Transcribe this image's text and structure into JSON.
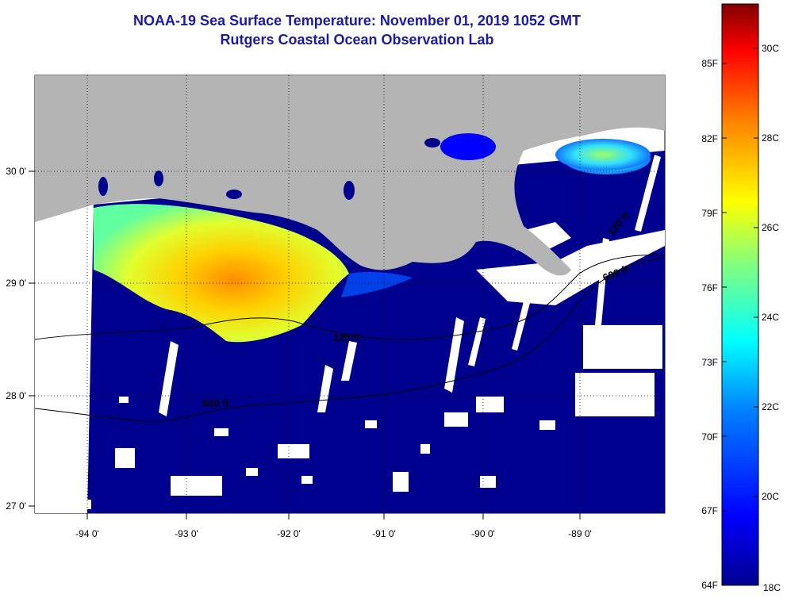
{
  "header": {
    "title": "NOAA-19 Sea Surface Temperature:  November 01, 2019 1052 GMT",
    "subtitle": "Rutgers Coastal Ocean Observation Lab"
  },
  "map": {
    "lon_range": [
      -94.5,
      -88.4
    ],
    "lat_range": [
      26.95,
      30.85
    ],
    "lon_ticks": [
      {
        "value": -94,
        "label": "-94 0'"
      },
      {
        "value": -93,
        "label": "-93 0'"
      },
      {
        "value": -92,
        "label": "-92 0'"
      },
      {
        "value": -91,
        "label": "-91 0'"
      },
      {
        "value": -90,
        "label": "-90 0'"
      },
      {
        "value": -89,
        "label": "-89 0'"
      }
    ],
    "lat_ticks": [
      {
        "value": 27,
        "label": "27 0'"
      },
      {
        "value": 28,
        "label": "28 0'"
      },
      {
        "value": 29,
        "label": "29 0'"
      },
      {
        "value": 30,
        "label": "30 0'"
      }
    ],
    "contours": [
      {
        "label": "120 ft",
        "at": [
          -91.45,
          28.45
        ]
      },
      {
        "label": "600 ft",
        "at": [
          -93.3,
          27.9
        ]
      },
      {
        "label": "600 ft",
        "at": [
          -88.75,
          29.05
        ]
      },
      {
        "label": "120 ft",
        "at": [
          -88.8,
          29.55
        ]
      }
    ],
    "colors": {
      "land": "#b4b4b4",
      "cloud": "#ffffff",
      "water_cold": "#00008f",
      "contour_line": "#000000"
    }
  },
  "colorbar": {
    "title": "",
    "range_c": [
      18,
      31
    ],
    "celsius_labels": [
      {
        "value": 18,
        "label": "18C"
      },
      {
        "value": 20,
        "label": "20C"
      },
      {
        "value": 22,
        "label": "22C"
      },
      {
        "value": 24,
        "label": "24C"
      },
      {
        "value": 26,
        "label": "26C"
      },
      {
        "value": 28,
        "label": "28C"
      },
      {
        "value": 30,
        "label": "30C"
      }
    ],
    "fahrenheit_labels": [
      {
        "value": 64,
        "label": "64F"
      },
      {
        "value": 67,
        "label": "67F"
      },
      {
        "value": 70,
        "label": "70F"
      },
      {
        "value": 73,
        "label": "73F"
      },
      {
        "value": 76,
        "label": "76F"
      },
      {
        "value": 79,
        "label": "79F"
      },
      {
        "value": 82,
        "label": "82F"
      },
      {
        "value": 85,
        "label": "85F"
      }
    ],
    "colormap": [
      "#00008f",
      "#0000ff",
      "#0080ff",
      "#00ffff",
      "#80ff80",
      "#ffff00",
      "#ff8000",
      "#ff0000",
      "#800000"
    ]
  }
}
